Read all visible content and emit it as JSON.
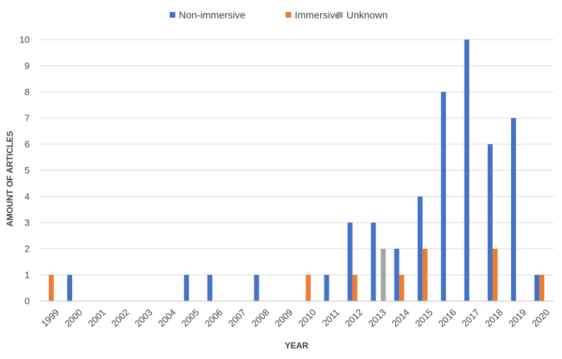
{
  "chart_data": {
    "type": "bar",
    "xlabel": "YEAR",
    "ylabel": "AMOUNT OF ARTICLES",
    "ylim": [
      0,
      10
    ],
    "yticks": [
      0,
      1,
      2,
      3,
      4,
      5,
      6,
      7,
      8,
      9,
      10
    ],
    "grid": true,
    "legend_position": "top",
    "categories": [
      "1999",
      "2000",
      "2001",
      "2002",
      "2003",
      "2004",
      "2005",
      "2006",
      "2007",
      "2008",
      "2009",
      "2010",
      "2011",
      "2012",
      "2013",
      "2014",
      "2015",
      "2016",
      "2017",
      "2018",
      "2019",
      "2020"
    ],
    "series": [
      {
        "name": "Non-immersive",
        "color": "#4472c4",
        "values": [
          0,
          1,
          0,
          0,
          0,
          0,
          1,
          1,
          0,
          1,
          0,
          0,
          1,
          3,
          3,
          2,
          4,
          8,
          10,
          6,
          7,
          1
        ]
      },
      {
        "name": "Immersive",
        "color": "#ed7d31",
        "values": [
          1,
          0,
          0,
          0,
          0,
          0,
          0,
          0,
          0,
          0,
          0,
          1,
          0,
          1,
          0,
          1,
          2,
          0,
          0,
          2,
          0,
          1
        ]
      },
      {
        "name": "Unknown",
        "color": "#a5a5a5",
        "values": [
          0,
          0,
          0,
          0,
          0,
          0,
          0,
          0,
          0,
          0,
          0,
          0,
          0,
          0,
          2,
          0,
          0,
          0,
          0,
          0,
          0,
          0
        ]
      }
    ]
  }
}
